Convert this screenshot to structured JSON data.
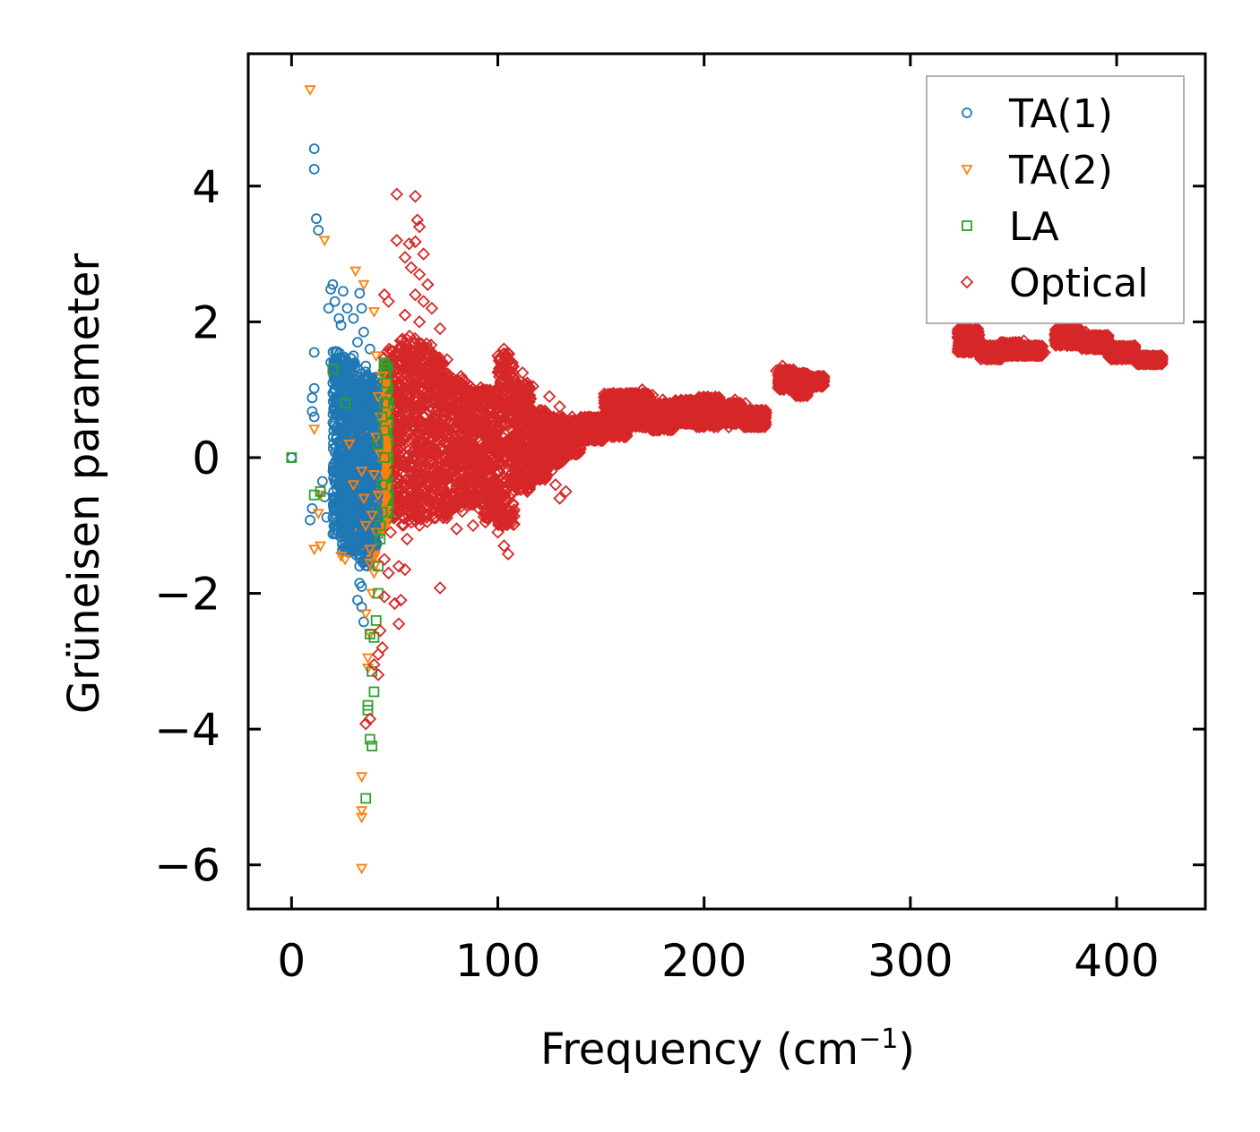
{
  "chart_data": {
    "type": "scatter",
    "title": "",
    "xlabel": "Frequency (cm",
    "xlabel_sup": "−1",
    "xlabel_close": ")",
    "ylabel": "Grüneisen parameter",
    "xlim": [
      -21,
      443
    ],
    "ylim": [
      -6.65,
      5.95
    ],
    "xticks": [
      0,
      100,
      200,
      300,
      400
    ],
    "xtick_labels": [
      "0",
      "100",
      "200",
      "300",
      "400"
    ],
    "yticks": [
      -6,
      -4,
      -2,
      0,
      2,
      4
    ],
    "ytick_labels": [
      "−6",
      "−4",
      "−2",
      "0",
      "2",
      "4"
    ],
    "legend_position": "top-right",
    "series": [
      {
        "name": "TA(1)",
        "marker": "circle",
        "color": "#1f77b4",
        "points": [
          [
            0,
            0
          ],
          [
            11,
            4.55
          ],
          [
            11,
            4.25
          ],
          [
            12,
            3.52
          ],
          [
            13,
            3.35
          ],
          [
            11,
            1.55
          ],
          [
            11,
            1.02
          ],
          [
            10,
            0.88
          ],
          [
            10,
            0.68
          ],
          [
            11,
            0.6
          ],
          [
            10,
            -0.75
          ],
          [
            9,
            -0.92
          ],
          [
            15,
            -0.35
          ],
          [
            16,
            -0.58
          ],
          [
            17,
            -0.88
          ],
          [
            18,
            2.2
          ],
          [
            19,
            2.48
          ],
          [
            20,
            2.55
          ],
          [
            21,
            2.3
          ],
          [
            23,
            2.05
          ],
          [
            24,
            1.95
          ],
          [
            25,
            2.45
          ],
          [
            27,
            2.2
          ],
          [
            30,
            2.05
          ],
          [
            33,
            2.42
          ],
          [
            34,
            2.2
          ],
          [
            35,
            1.85
          ],
          [
            19,
            1.4
          ],
          [
            20,
            1.1
          ],
          [
            21,
            0.85
          ],
          [
            22,
            0.65
          ],
          [
            24,
            0.42
          ],
          [
            26,
            0.2
          ],
          [
            27,
            -0.05
          ],
          [
            28,
            -0.3
          ],
          [
            29,
            -0.55
          ],
          [
            30,
            -0.8
          ],
          [
            31,
            -1.05
          ],
          [
            32,
            -1.3
          ],
          [
            33,
            -1.6
          ],
          [
            34,
            -1.9
          ],
          [
            34,
            -2.2
          ],
          [
            35,
            -2.42
          ],
          [
            32,
            -2.1
          ],
          [
            33,
            -1.85
          ],
          [
            36,
            -1.2
          ],
          [
            37,
            -0.9
          ],
          [
            38,
            -0.5
          ],
          [
            39,
            -0.1
          ],
          [
            40,
            0.3
          ],
          [
            38,
            0.7
          ],
          [
            37,
            1.05
          ],
          [
            36,
            1.35
          ],
          [
            38,
            1.6
          ],
          [
            27,
            1.2
          ],
          [
            29,
            0.95
          ],
          [
            31,
            0.5
          ],
          [
            33,
            0.1
          ],
          [
            35,
            -0.3
          ],
          [
            25,
            -0.4
          ],
          [
            23,
            -0.1
          ],
          [
            22,
            0.3
          ],
          [
            36,
            -0.7
          ],
          [
            34,
            -1.0
          ],
          [
            30,
            1.5
          ],
          [
            32,
            1.7
          ]
        ]
      },
      {
        "name": "TA(2)",
        "marker": "triangle-down",
        "color": "#ff7f0e",
        "points": [
          [
            9,
            5.42
          ],
          [
            16,
            3.2
          ],
          [
            31,
            2.75
          ],
          [
            35,
            2.55
          ],
          [
            40,
            2.15
          ],
          [
            11,
            0.42
          ],
          [
            14,
            -0.55
          ],
          [
            13,
            -0.82
          ],
          [
            11,
            -1.35
          ],
          [
            14,
            -1.3
          ],
          [
            24,
            -1.45
          ],
          [
            26,
            -1.5
          ],
          [
            34,
            -4.7
          ],
          [
            34,
            -5.2
          ],
          [
            34,
            -5.3
          ],
          [
            34,
            -6.05
          ],
          [
            37,
            -2.95
          ],
          [
            38,
            -2.6
          ],
          [
            36,
            -2.3
          ],
          [
            39,
            -2.0
          ],
          [
            40,
            -1.7
          ],
          [
            38,
            -1.35
          ],
          [
            41,
            -1.1
          ],
          [
            39,
            -0.85
          ],
          [
            42,
            -0.55
          ],
          [
            40,
            -0.25
          ],
          [
            43,
            0.05
          ],
          [
            41,
            0.3
          ],
          [
            43,
            0.6
          ],
          [
            42,
            0.9
          ],
          [
            44,
            1.2
          ],
          [
            41,
            1.5
          ],
          [
            36,
            -1.0
          ],
          [
            35,
            -0.6
          ],
          [
            34,
            -0.2
          ],
          [
            30,
            -0.4
          ],
          [
            28,
            0.2
          ],
          [
            38,
            -1.55
          ],
          [
            37,
            -3.1
          ]
        ]
      },
      {
        "name": "LA",
        "marker": "square",
        "color": "#2ca02c",
        "points": [
          [
            0,
            0
          ],
          [
            11,
            -0.55
          ],
          [
            14,
            -0.5
          ],
          [
            20,
            1.3
          ],
          [
            26,
            0.8
          ],
          [
            36,
            -5.02
          ],
          [
            37,
            -3.65
          ],
          [
            37,
            -3.72
          ],
          [
            38,
            -4.15
          ],
          [
            39,
            -4.25
          ],
          [
            40,
            -3.45
          ],
          [
            39,
            -3.15
          ],
          [
            38,
            -2.6
          ],
          [
            40,
            -2.65
          ],
          [
            41,
            -2.4
          ],
          [
            42,
            -2.0
          ],
          [
            42,
            -1.6
          ],
          [
            43,
            -1.2
          ],
          [
            44,
            -0.8
          ],
          [
            44,
            -0.4
          ],
          [
            45,
            0.0
          ],
          [
            45,
            0.4
          ],
          [
            45,
            0.8
          ],
          [
            46,
            1.1
          ],
          [
            45,
            1.4
          ],
          [
            43,
            -1.0
          ],
          [
            44,
            0.6
          ],
          [
            42,
            0.2
          ]
        ]
      },
      {
        "name": "Optical",
        "marker": "diamond",
        "color": "#d62728",
        "points": [
          [
            51,
            3.88
          ],
          [
            60,
            3.85
          ],
          [
            61,
            3.5
          ],
          [
            62,
            3.4
          ],
          [
            51,
            3.2
          ],
          [
            57,
            3.15
          ],
          [
            60,
            3.18
          ],
          [
            64,
            3.0
          ],
          [
            55,
            2.95
          ],
          [
            58,
            2.8
          ],
          [
            62,
            2.7
          ],
          [
            66,
            2.55
          ],
          [
            60,
            2.4
          ],
          [
            64,
            2.3
          ],
          [
            68,
            2.2
          ],
          [
            45,
            2.4
          ],
          [
            47,
            2.3
          ],
          [
            55,
            2.1
          ],
          [
            62,
            2.0
          ],
          [
            72,
            1.9
          ],
          [
            45,
            -1.5
          ],
          [
            47,
            -1.7
          ],
          [
            52,
            -1.6
          ],
          [
            55,
            -1.65
          ],
          [
            45,
            -2.05
          ],
          [
            50,
            -2.15
          ],
          [
            53,
            -2.1
          ],
          [
            52,
            -2.45
          ],
          [
            72,
            -1.92
          ],
          [
            43,
            -2.55
          ],
          [
            42,
            -2.9
          ],
          [
            44,
            -2.8
          ],
          [
            40,
            -3.05
          ],
          [
            42,
            -3.2
          ],
          [
            38,
            -3.85
          ],
          [
            36,
            -3.92
          ],
          [
            48,
            -1.1
          ],
          [
            56,
            -1.2
          ],
          [
            62,
            -1.0
          ],
          [
            80,
            -1.05
          ],
          [
            88,
            -1.0
          ],
          [
            94,
            -0.95
          ],
          [
            103,
            -1.3
          ],
          [
            105,
            -1.42
          ],
          [
            100,
            -1.1
          ],
          [
            100,
            1.5
          ],
          [
            103,
            1.6
          ],
          [
            107,
            1.4
          ],
          [
            112,
            1.25
          ],
          [
            117,
            1.05
          ],
          [
            125,
            0.9
          ],
          [
            130,
            0.75
          ],
          [
            136,
            0.6
          ],
          [
            126,
            -0.2
          ],
          [
            122,
            -0.3
          ],
          [
            128,
            -0.4
          ],
          [
            130,
            -0.6
          ],
          [
            133,
            -0.5
          ],
          [
            117,
            -0.05
          ],
          [
            140,
            0.5
          ],
          [
            145,
            0.55
          ],
          [
            150,
            0.5
          ],
          [
            155,
            0.65
          ],
          [
            160,
            0.85
          ],
          [
            165,
            0.95
          ],
          [
            170,
            1.0
          ],
          [
            175,
            0.92
          ],
          [
            180,
            0.85
          ],
          [
            185,
            0.7
          ],
          [
            190,
            0.75
          ],
          [
            195,
            0.7
          ],
          [
            200,
            0.65
          ],
          [
            205,
            0.6
          ],
          [
            210,
            0.75
          ],
          [
            215,
            0.85
          ],
          [
            220,
            0.8
          ],
          [
            225,
            0.65
          ],
          [
            228,
            0.55
          ],
          [
            212,
            0.45
          ],
          [
            202,
            0.5
          ],
          [
            190,
            0.6
          ],
          [
            180,
            0.5
          ],
          [
            170,
            0.5
          ],
          [
            160,
            0.45
          ],
          [
            150,
            0.35
          ],
          [
            140,
            0.35
          ],
          [
            235,
            1.28
          ],
          [
            238,
            1.35
          ],
          [
            242,
            1.2
          ],
          [
            245,
            1.15
          ],
          [
            248,
            1.05
          ],
          [
            250,
            1.15
          ],
          [
            255,
            1.2
          ],
          [
            258,
            1.18
          ],
          [
            325,
            1.85
          ],
          [
            330,
            1.75
          ],
          [
            333,
            1.65
          ],
          [
            335,
            1.55
          ],
          [
            340,
            1.5
          ],
          [
            344,
            1.45
          ],
          [
            350,
            1.65
          ],
          [
            355,
            1.72
          ],
          [
            360,
            1.62
          ],
          [
            365,
            1.55
          ],
          [
            372,
            1.9
          ],
          [
            376,
            1.82
          ],
          [
            380,
            1.75
          ],
          [
            385,
            1.85
          ],
          [
            390,
            1.8
          ],
          [
            395,
            1.7
          ],
          [
            400,
            1.62
          ],
          [
            405,
            1.58
          ],
          [
            410,
            1.52
          ],
          [
            415,
            1.47
          ],
          [
            420,
            1.42
          ],
          [
            422,
            1.38
          ]
        ]
      }
    ],
    "dense_regions": [
      {
        "series": "TA(1)",
        "xrange": [
          20,
          42
        ],
        "ybands": [
          [
            -1.2,
            1.6
          ],
          [
            -1.4,
            1.5
          ],
          [
            -1.5,
            1.4
          ],
          [
            -1.6,
            1.3
          ],
          [
            -1.3,
            1.2
          ]
        ]
      },
      {
        "series": "TA(2)",
        "xrange": [
          26,
          46
        ],
        "ybands": [
          [
            -1.2,
            0.8
          ],
          [
            -1.4,
            1.0
          ],
          [
            -1.6,
            0.9
          ],
          [
            -1.1,
            1.1
          ]
        ]
      },
      {
        "series": "LA",
        "xrange": [
          40,
          47
        ],
        "ybands": [
          [
            -1.2,
            1.0
          ],
          [
            -1.0,
            1.2
          ],
          [
            -0.9,
            1.4
          ]
        ]
      },
      {
        "series": "Optical",
        "xrange": [
          44,
          140
        ],
        "ybands": [
          [
            -0.9,
            1.6
          ],
          [
            -1.0,
            1.8
          ],
          [
            -0.95,
            1.7
          ],
          [
            -0.9,
            1.5
          ],
          [
            -0.8,
            1.2
          ],
          [
            -0.75,
            1.05
          ],
          [
            -0.9,
            1.0
          ],
          [
            -1.0,
            1.55
          ],
          [
            -0.5,
            1.1
          ],
          [
            -0.35,
            0.7
          ],
          [
            -0.1,
            0.6
          ],
          [
            0.05,
            0.55
          ]
        ]
      },
      {
        "series": "Optical",
        "xrange": [
          140,
          230
        ],
        "ybands": [
          [
            0.25,
            0.6
          ],
          [
            0.3,
            0.95
          ],
          [
            0.45,
            0.95
          ],
          [
            0.4,
            0.8
          ],
          [
            0.5,
            0.85
          ],
          [
            0.45,
            0.9
          ],
          [
            0.5,
            0.8
          ],
          [
            0.45,
            0.7
          ]
        ]
      },
      {
        "series": "Optical",
        "xrange": [
          236,
          258
        ],
        "ybands": [
          [
            1.0,
            1.3
          ],
          [
            0.9,
            1.25
          ],
          [
            1.05,
            1.2
          ]
        ]
      },
      {
        "series": "Optical",
        "xrange": [
          323,
          364
        ],
        "ybands": [
          [
            1.55,
            1.9
          ],
          [
            1.45,
            1.65
          ],
          [
            1.5,
            1.7
          ],
          [
            1.5,
            1.65
          ]
        ]
      },
      {
        "series": "Optical",
        "xrange": [
          370,
          422
        ],
        "ybands": [
          [
            1.65,
            1.9
          ],
          [
            1.6,
            1.8
          ],
          [
            1.45,
            1.65
          ],
          [
            1.38,
            1.5
          ]
        ]
      }
    ]
  }
}
